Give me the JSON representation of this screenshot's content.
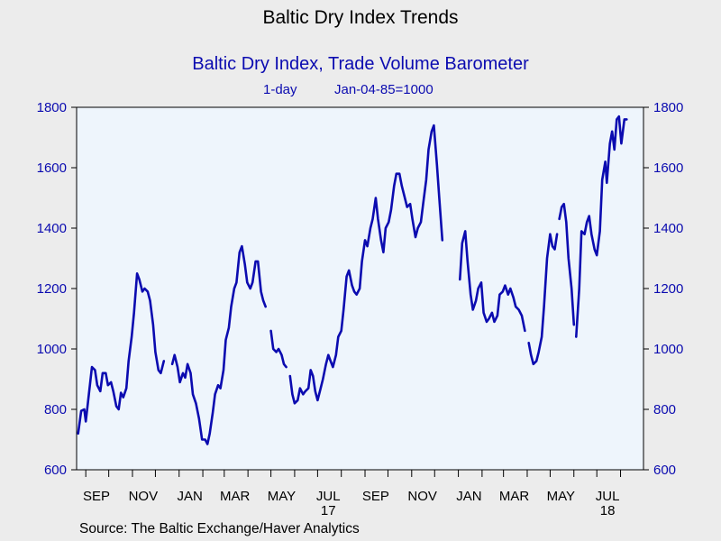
{
  "page_title": "Baltic Dry Index Trends",
  "source": "Source:  The Baltic Exchange/Haver Analytics",
  "chart_data": {
    "type": "line",
    "title": "Baltic Dry Index, Trade Volume Barometer",
    "subtitle_freq": "1-day",
    "subtitle_base": "Jan-04-85=1000",
    "ylim": [
      600,
      1800
    ],
    "y_ticks": [
      600,
      800,
      1000,
      1200,
      1400,
      1600,
      1800
    ],
    "y_tick_labels": [
      "600",
      "800",
      "1000",
      "1200",
      "1400",
      "1600",
      "1800"
    ],
    "x_range": [
      "2016-08-20",
      "2018-08-31"
    ],
    "x_ticks": [
      {
        "label": "SEP",
        "date": "2016-09-15"
      },
      {
        "label": "NOV",
        "date": "2016-11-15"
      },
      {
        "label": "JAN",
        "date": "2017-01-15"
      },
      {
        "label": "MAR",
        "date": "2017-03-15"
      },
      {
        "label": "MAY",
        "date": "2017-05-15"
      },
      {
        "label": "JUL",
        "date": "2017-07-15"
      },
      {
        "label": "SEP",
        "date": "2017-09-15"
      },
      {
        "label": "NOV",
        "date": "2017-11-15"
      },
      {
        "label": "JAN",
        "date": "2018-01-15"
      },
      {
        "label": "MAR",
        "date": "2018-03-15"
      },
      {
        "label": "MAY",
        "date": "2018-05-15"
      },
      {
        "label": "JUL",
        "date": "2018-07-15"
      }
    ],
    "year_labels": [
      {
        "label": "17",
        "date": "2017-07-15"
      },
      {
        "label": "18",
        "date": "2018-07-15"
      }
    ],
    "grid": false,
    "background": "#eef5fc",
    "line_color": "#0b0bb0",
    "series": [
      {
        "segments": [
          [
            [
              "2016-08-22",
              720
            ],
            [
              "2016-08-26",
              795
            ],
            [
              "2016-08-30",
              800
            ],
            [
              "2016-09-01",
              760
            ],
            [
              "2016-09-05",
              850
            ],
            [
              "2016-09-09",
              940
            ],
            [
              "2016-09-13",
              930
            ],
            [
              "2016-09-16",
              880
            ],
            [
              "2016-09-20",
              860
            ],
            [
              "2016-09-23",
              920
            ],
            [
              "2016-09-27",
              920
            ],
            [
              "2016-09-30",
              880
            ],
            [
              "2016-10-04",
              890
            ],
            [
              "2016-10-07",
              860
            ],
            [
              "2016-10-11",
              810
            ],
            [
              "2016-10-14",
              800
            ],
            [
              "2016-10-17",
              855
            ],
            [
              "2016-10-20",
              840
            ],
            [
              "2016-10-24",
              870
            ],
            [
              "2016-10-27",
              960
            ],
            [
              "2016-10-31",
              1040
            ],
            [
              "2016-11-03",
              1120
            ],
            [
              "2016-11-07",
              1250
            ],
            [
              "2016-11-10",
              1230
            ],
            [
              "2016-11-14",
              1190
            ],
            [
              "2016-11-17",
              1200
            ],
            [
              "2016-11-21",
              1190
            ],
            [
              "2016-11-24",
              1160
            ],
            [
              "2016-11-28",
              1080
            ],
            [
              "2016-12-01",
              990
            ],
            [
              "2016-12-05",
              930
            ],
            [
              "2016-12-08",
              920
            ],
            [
              "2016-12-12",
              960
            ]
          ],
          [
            [
              "2016-12-23",
              950
            ],
            [
              "2016-12-26",
              980
            ],
            [
              "2016-12-30",
              940
            ],
            [
              "2017-01-02",
              890
            ],
            [
              "2017-01-06",
              920
            ],
            [
              "2017-01-09",
              905
            ],
            [
              "2017-01-12",
              950
            ],
            [
              "2017-01-16",
              920
            ],
            [
              "2017-01-19",
              850
            ],
            [
              "2017-01-23",
              820
            ],
            [
              "2017-01-27",
              770
            ],
            [
              "2017-01-31",
              700
            ],
            [
              "2017-02-04",
              700
            ],
            [
              "2017-02-07",
              685
            ],
            [
              "2017-02-10",
              720
            ],
            [
              "2017-02-14",
              790
            ],
            [
              "2017-02-17",
              850
            ],
            [
              "2017-02-21",
              880
            ],
            [
              "2017-02-24",
              870
            ],
            [
              "2017-02-28",
              930
            ],
            [
              "2017-03-03",
              1030
            ],
            [
              "2017-03-07",
              1070
            ],
            [
              "2017-03-10",
              1140
            ],
            [
              "2017-03-14",
              1200
            ],
            [
              "2017-03-17",
              1220
            ],
            [
              "2017-03-21",
              1320
            ],
            [
              "2017-03-24",
              1340
            ],
            [
              "2017-03-28",
              1280
            ],
            [
              "2017-03-31",
              1220
            ],
            [
              "2017-04-04",
              1200
            ],
            [
              "2017-04-07",
              1220
            ],
            [
              "2017-04-11",
              1290
            ],
            [
              "2017-04-14",
              1290
            ],
            [
              "2017-04-18",
              1190
            ],
            [
              "2017-04-21",
              1160
            ],
            [
              "2017-04-24",
              1140
            ]
          ],
          [
            [
              "2017-05-01",
              1060
            ],
            [
              "2017-05-04",
              1000
            ],
            [
              "2017-05-08",
              990
            ],
            [
              "2017-05-11",
              1000
            ],
            [
              "2017-05-15",
              980
            ],
            [
              "2017-05-18",
              950
            ],
            [
              "2017-05-21",
              940
            ]
          ],
          [
            [
              "2017-05-26",
              910
            ],
            [
              "2017-05-29",
              850
            ],
            [
              "2017-06-01",
              820
            ],
            [
              "2017-06-05",
              830
            ],
            [
              "2017-06-08",
              870
            ],
            [
              "2017-06-12",
              850
            ],
            [
              "2017-06-15",
              860
            ],
            [
              "2017-06-19",
              870
            ],
            [
              "2017-06-22",
              930
            ],
            [
              "2017-06-25",
              910
            ],
            [
              "2017-06-28",
              860
            ],
            [
              "2017-07-01",
              830
            ],
            [
              "2017-07-05",
              870
            ],
            [
              "2017-07-08",
              900
            ],
            [
              "2017-07-12",
              950
            ],
            [
              "2017-07-15",
              980
            ],
            [
              "2017-07-18",
              960
            ],
            [
              "2017-07-21",
              940
            ],
            [
              "2017-07-25",
              980
            ],
            [
              "2017-07-28",
              1040
            ],
            [
              "2017-08-01",
              1060
            ],
            [
              "2017-08-04",
              1130
            ],
            [
              "2017-08-08",
              1240
            ],
            [
              "2017-08-11",
              1260
            ],
            [
              "2017-08-15",
              1210
            ],
            [
              "2017-08-18",
              1190
            ],
            [
              "2017-08-21",
              1180
            ],
            [
              "2017-08-25",
              1200
            ],
            [
              "2017-08-28",
              1290
            ],
            [
              "2017-09-01",
              1360
            ],
            [
              "2017-09-04",
              1340
            ],
            [
              "2017-09-08",
              1400
            ],
            [
              "2017-09-11",
              1430
            ],
            [
              "2017-09-15",
              1500
            ],
            [
              "2017-09-18",
              1430
            ],
            [
              "2017-09-22",
              1360
            ],
            [
              "2017-09-25",
              1320
            ],
            [
              "2017-09-28",
              1400
            ],
            [
              "2017-10-02",
              1420
            ],
            [
              "2017-10-05",
              1460
            ],
            [
              "2017-10-09",
              1540
            ],
            [
              "2017-10-12",
              1580
            ],
            [
              "2017-10-16",
              1580
            ],
            [
              "2017-10-19",
              1540
            ],
            [
              "2017-10-23",
              1500
            ],
            [
              "2017-10-26",
              1470
            ],
            [
              "2017-10-30",
              1480
            ],
            [
              "2017-11-02",
              1430
            ],
            [
              "2017-11-06",
              1370
            ],
            [
              "2017-11-09",
              1400
            ],
            [
              "2017-11-13",
              1420
            ],
            [
              "2017-11-16",
              1480
            ],
            [
              "2017-11-20",
              1560
            ],
            [
              "2017-11-23",
              1660
            ],
            [
              "2017-11-27",
              1720
            ],
            [
              "2017-11-30",
              1740
            ],
            [
              "2017-12-04",
              1610
            ],
            [
              "2017-12-07",
              1500
            ],
            [
              "2017-12-11",
              1360
            ]
          ],
          [
            [
              "2018-01-03",
              1230
            ],
            [
              "2018-01-06",
              1350
            ],
            [
              "2018-01-10",
              1390
            ],
            [
              "2018-01-13",
              1290
            ],
            [
              "2018-01-17",
              1180
            ],
            [
              "2018-01-20",
              1130
            ],
            [
              "2018-01-24",
              1160
            ],
            [
              "2018-01-27",
              1200
            ],
            [
              "2018-01-31",
              1220
            ],
            [
              "2018-02-03",
              1120
            ],
            [
              "2018-02-07",
              1090
            ],
            [
              "2018-02-10",
              1100
            ],
            [
              "2018-02-14",
              1120
            ],
            [
              "2018-02-17",
              1090
            ],
            [
              "2018-02-21",
              1110
            ],
            [
              "2018-02-24",
              1180
            ],
            [
              "2018-02-28",
              1190
            ],
            [
              "2018-03-03",
              1210
            ],
            [
              "2018-03-07",
              1180
            ],
            [
              "2018-03-10",
              1200
            ],
            [
              "2018-03-14",
              1170
            ],
            [
              "2018-03-17",
              1140
            ],
            [
              "2018-03-21",
              1130
            ],
            [
              "2018-03-25",
              1110
            ],
            [
              "2018-03-29",
              1060
            ]
          ],
          [
            [
              "2018-04-03",
              1020
            ],
            [
              "2018-04-06",
              980
            ],
            [
              "2018-04-09",
              950
            ],
            [
              "2018-04-13",
              960
            ],
            [
              "2018-04-16",
              990
            ],
            [
              "2018-04-20",
              1040
            ],
            [
              "2018-04-23",
              1140
            ],
            [
              "2018-04-27",
              1300
            ],
            [
              "2018-05-01",
              1380
            ],
            [
              "2018-05-04",
              1340
            ],
            [
              "2018-05-07",
              1330
            ],
            [
              "2018-05-10",
              1380
            ]
          ],
          [
            [
              "2018-05-13",
              1430
            ],
            [
              "2018-05-16",
              1470
            ],
            [
              "2018-05-19",
              1480
            ],
            [
              "2018-05-22",
              1420
            ],
            [
              "2018-05-25",
              1300
            ],
            [
              "2018-05-29",
              1200
            ],
            [
              "2018-06-01",
              1080
            ]
          ],
          [
            [
              "2018-06-04",
              1040
            ],
            [
              "2018-06-08",
              1200
            ],
            [
              "2018-06-11",
              1390
            ],
            [
              "2018-06-15",
              1380
            ],
            [
              "2018-06-18",
              1420
            ],
            [
              "2018-06-21",
              1440
            ],
            [
              "2018-06-24",
              1380
            ],
            [
              "2018-06-28",
              1330
            ],
            [
              "2018-07-01",
              1310
            ],
            [
              "2018-07-05",
              1390
            ],
            [
              "2018-07-08",
              1560
            ],
            [
              "2018-07-12",
              1620
            ],
            [
              "2018-07-14",
              1550
            ],
            [
              "2018-07-18",
              1680
            ],
            [
              "2018-07-21",
              1720
            ],
            [
              "2018-07-24",
              1660
            ],
            [
              "2018-07-27",
              1760
            ],
            [
              "2018-07-30",
              1770
            ],
            [
              "2018-08-02",
              1680
            ],
            [
              "2018-08-06",
              1760
            ],
            [
              "2018-08-09",
              1760
            ]
          ]
        ]
      }
    ]
  }
}
